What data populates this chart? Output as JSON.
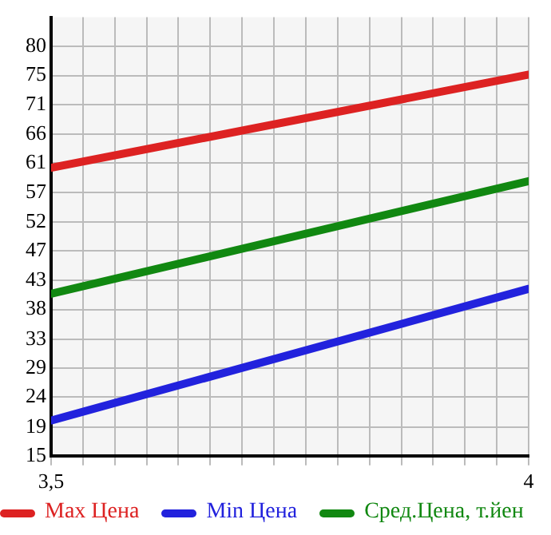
{
  "chart_data": {
    "type": "line",
    "x": [
      3.5,
      4
    ],
    "xlim": [
      3.5,
      4
    ],
    "xticks": [
      {
        "value": 3.5,
        "label": "3,5"
      },
      {
        "value": 3.5333,
        "label": null
      },
      {
        "value": 3.5667,
        "label": null
      },
      {
        "value": 3.6,
        "label": null
      },
      {
        "value": 3.6333,
        "label": null
      },
      {
        "value": 3.6667,
        "label": null
      },
      {
        "value": 3.7,
        "label": null
      },
      {
        "value": 3.7333,
        "label": null
      },
      {
        "value": 3.7667,
        "label": null
      },
      {
        "value": 3.8,
        "label": null
      },
      {
        "value": 3.8333,
        "label": null
      },
      {
        "value": 3.8667,
        "label": null
      },
      {
        "value": 3.9,
        "label": null
      },
      {
        "value": 3.9333,
        "label": null
      },
      {
        "value": 3.9667,
        "label": null
      },
      {
        "value": 4,
        "label": "4"
      }
    ],
    "ylim": [
      15,
      84.6
    ],
    "yticks": [
      {
        "value": 15,
        "label": "15"
      },
      {
        "value": 19.49,
        "label": "19"
      },
      {
        "value": 24.29,
        "label": "24"
      },
      {
        "value": 28.93,
        "label": "29"
      },
      {
        "value": 33.49,
        "label": "33"
      },
      {
        "value": 38.21,
        "label": "38"
      },
      {
        "value": 42.86,
        "label": "43"
      },
      {
        "value": 47.5,
        "label": "47"
      },
      {
        "value": 52.14,
        "label": "52"
      },
      {
        "value": 56.79,
        "label": "57"
      },
      {
        "value": 61.43,
        "label": "61"
      },
      {
        "value": 66.07,
        "label": "66"
      },
      {
        "value": 70.71,
        "label": "71"
      },
      {
        "value": 75.36,
        "label": "75"
      },
      {
        "value": 80,
        "label": "80"
      }
    ],
    "grid": true,
    "legend": "bottom",
    "marker": "none",
    "line_style": "solid",
    "series": [
      {
        "name": "Max Цена",
        "color": "#dd2222",
        "values": [
          60.7,
          75.5
        ]
      },
      {
        "name": "Min Цена",
        "color": "#2222dd",
        "values": [
          20.6,
          41.5
        ]
      },
      {
        "name": "Сред.Цена, т.йен",
        "color": "#118811",
        "values": [
          40.7,
          58.6
        ]
      }
    ]
  }
}
